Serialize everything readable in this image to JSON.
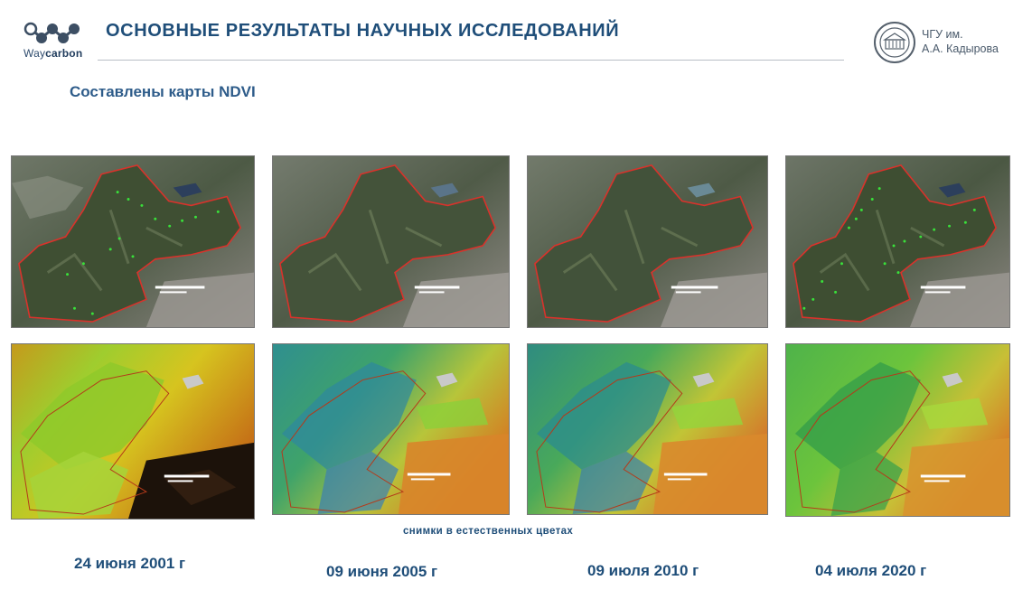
{
  "header": {
    "logo_text_regular": "Way",
    "logo_text_bold": "carbon",
    "title": "ОСНОВНЫЕ РЕЗУЛЬТАТЫ НАУЧНЫХ ИССЛЕДОВАНИЙ",
    "university_line1": "ЧГУ им.",
    "university_line2": "А.А. Кадырова"
  },
  "subtitle": "Составлены карты NDVI",
  "caption": "снимки в естественных цветах",
  "dates": [
    "24 июня 2001 г",
    "09 июня 2005 г",
    "09 июля 2010 г",
    "04 июля 2020 г"
  ],
  "colors": {
    "title": "#1f4e79",
    "boundary": "#d9322b",
    "vegetation_marks": "#39e03a"
  }
}
